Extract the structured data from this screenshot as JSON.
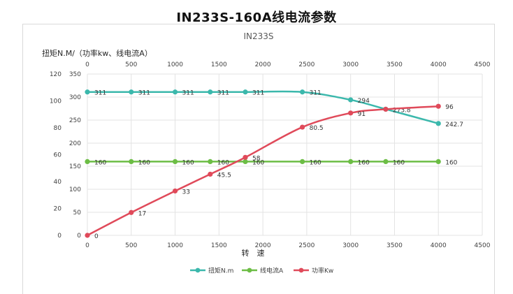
{
  "page_title": "IN233S-160A线电流参数",
  "chart_data": {
    "type": "line",
    "title": "IN233S",
    "xlabel": "转　速",
    "ylabel": "扭矩N.M/（功率kw、线电流A）",
    "x_ticks": [
      "0",
      "500",
      "1000",
      "1500",
      "2000",
      "2500",
      "3000",
      "3500",
      "4000",
      "4500"
    ],
    "xlim": [
      0,
      4500
    ],
    "y_left_ticks": [
      "0",
      "20",
      "40",
      "60",
      "80",
      "100",
      "120"
    ],
    "y_left_lim": [
      0,
      120
    ],
    "y_right_ticks": [
      "0",
      "50",
      "100",
      "150",
      "200",
      "250",
      "300",
      "350"
    ],
    "y_right_lim": [
      0,
      350
    ],
    "grid": true,
    "legend_position": "bottom",
    "series": [
      {
        "name": "扭矩N.m",
        "color": "#3bb8ac",
        "axis": "right",
        "x": [
          0,
          500,
          1000,
          1400,
          1800,
          2450,
          3000,
          3400,
          4000
        ],
        "y": [
          311,
          311,
          311,
          311,
          311,
          311,
          294,
          273.8,
          242.7
        ],
        "labels": [
          "311",
          "311",
          "311",
          "311",
          "311",
          "311",
          "294",
          "273.8",
          "242.7"
        ]
      },
      {
        "name": "线电流A",
        "color": "#6cbd45",
        "axis": "right",
        "x": [
          0,
          500,
          1000,
          1400,
          1800,
          2450,
          3000,
          3400,
          4000
        ],
        "y": [
          160,
          160,
          160,
          160,
          160,
          160,
          160,
          160,
          160
        ],
        "labels": [
          "160",
          "160",
          "160",
          "160",
          "160",
          "160",
          "160",
          "160",
          "160"
        ]
      },
      {
        "name": "功率Kw",
        "color": "#e04a5a",
        "axis": "left",
        "x": [
          0,
          500,
          1000,
          1400,
          1800,
          2450,
          3000,
          3400,
          4000
        ],
        "y": [
          0,
          17,
          33,
          45.5,
          58,
          80.5,
          91,
          93.8,
          96
        ],
        "labels": [
          "0",
          "17",
          "33",
          "45.5",
          "58",
          "80.5",
          "91",
          "",
          "96"
        ]
      }
    ]
  }
}
